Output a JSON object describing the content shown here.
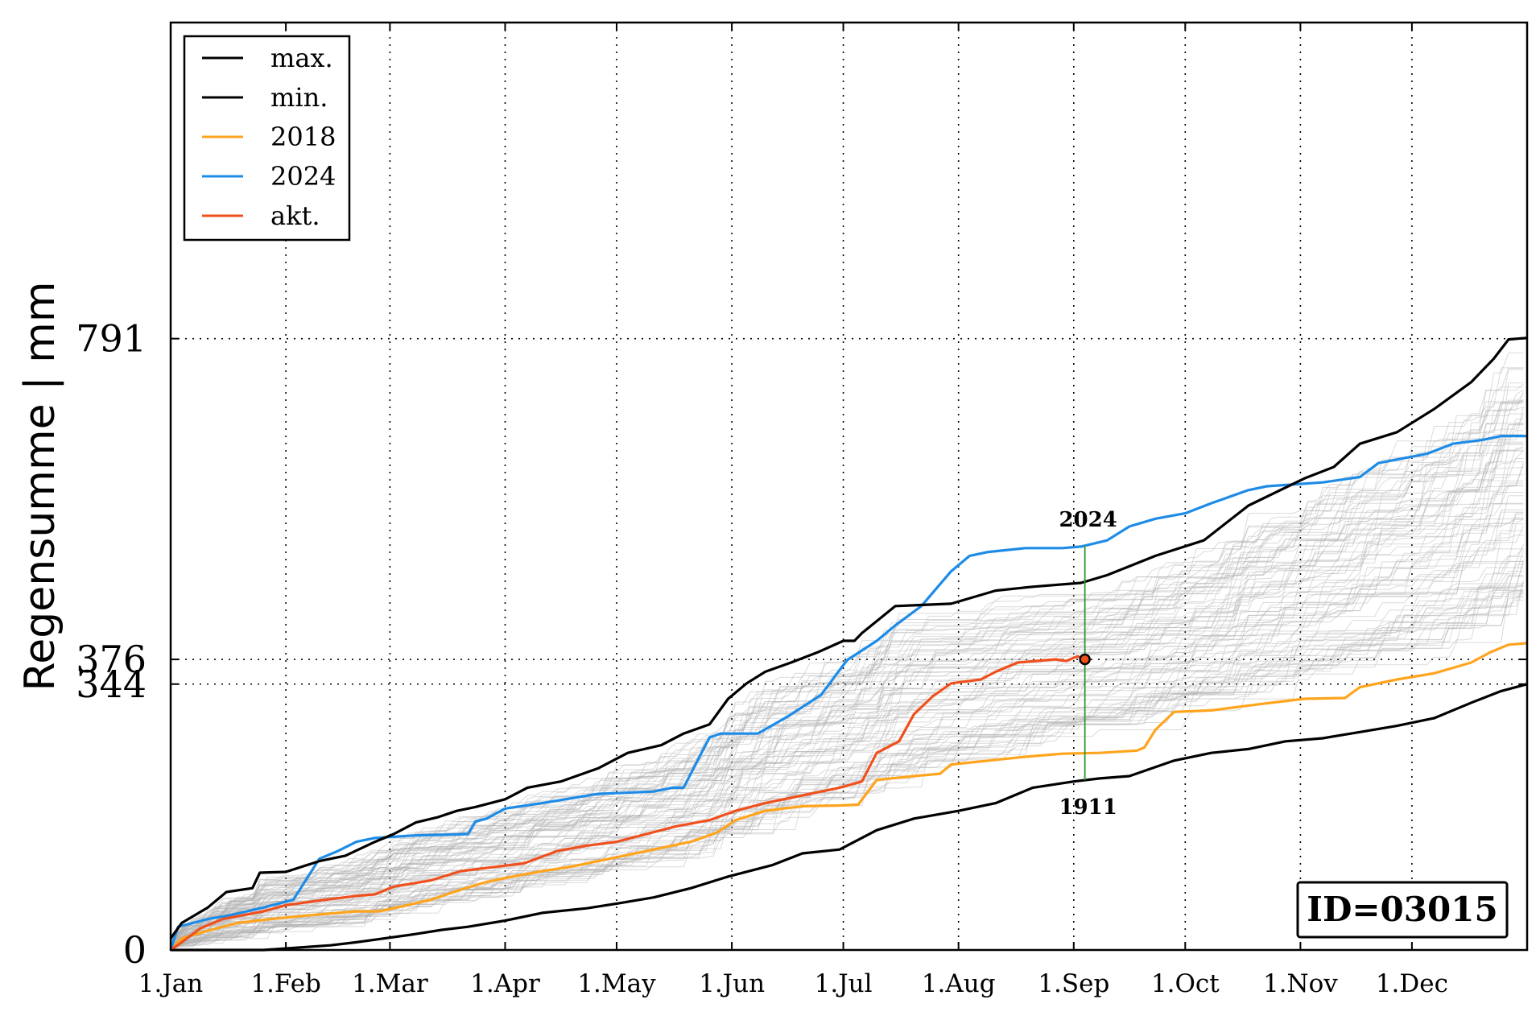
{
  "chart_data": {
    "type": "line",
    "title": "",
    "xlabel": "",
    "ylabel": "Regensumme | mm",
    "x_ticks": [
      "1.Jan",
      "1.Feb",
      "1.Mar",
      "1.Apr",
      "1.May",
      "1.Jun",
      "1.Jul",
      "1.Aug",
      "1.Sep",
      "1.Oct",
      "1.Nov",
      "1.Dec"
    ],
    "x_tick_days": [
      0,
      31,
      59,
      90,
      120,
      151,
      181,
      212,
      243,
      273,
      304,
      334
    ],
    "xlim_days": [
      0,
      365
    ],
    "y_ticks": [
      0,
      344,
      376,
      791
    ],
    "ylim": [
      0,
      1200
    ],
    "grid": true,
    "legend_position": "top-left",
    "id_label": "ID=03015",
    "current_day": 246,
    "current_value": 376,
    "annotation_max_year": "2024",
    "annotation_min_year": "1911",
    "colors": {
      "max": "#000000",
      "min": "#000000",
      "2018": "#ffa41c",
      "2024": "#1e8ce6",
      "akt": "#f0501e",
      "background": "#b0b0b0",
      "marker_line": "#2a9a2a"
    },
    "series": [
      {
        "name": "max.",
        "key": "max",
        "points": [
          [
            0,
            15
          ],
          [
            3,
            35
          ],
          [
            10,
            55
          ],
          [
            15,
            75
          ],
          [
            22,
            80
          ],
          [
            24,
            100
          ],
          [
            31,
            101
          ],
          [
            40,
            115
          ],
          [
            47,
            122
          ],
          [
            55,
            140
          ],
          [
            60,
            150
          ],
          [
            66,
            165
          ],
          [
            72,
            172
          ],
          [
            77,
            180
          ],
          [
            82,
            185
          ],
          [
            90,
            195
          ],
          [
            96,
            210
          ],
          [
            105,
            218
          ],
          [
            115,
            235
          ],
          [
            123,
            255
          ],
          [
            132,
            265
          ],
          [
            138,
            280
          ],
          [
            145,
            292
          ],
          [
            150,
            325
          ],
          [
            155,
            345
          ],
          [
            160,
            360
          ],
          [
            167,
            372
          ],
          [
            174,
            385
          ],
          [
            181,
            400
          ],
          [
            184,
            400
          ],
          [
            186,
            410
          ],
          [
            195,
            445
          ],
          [
            210,
            448
          ],
          [
            222,
            465
          ],
          [
            232,
            470
          ],
          [
            245,
            475
          ],
          [
            252,
            485
          ],
          [
            265,
            510
          ],
          [
            278,
            530
          ],
          [
            290,
            575
          ],
          [
            305,
            610
          ],
          [
            313,
            625
          ],
          [
            320,
            655
          ],
          [
            330,
            670
          ],
          [
            340,
            700
          ],
          [
            350,
            735
          ],
          [
            356,
            765
          ],
          [
            360,
            790
          ],
          [
            365,
            792
          ]
        ]
      },
      {
        "name": "min.",
        "key": "min",
        "points": [
          [
            0,
            0
          ],
          [
            25,
            0
          ],
          [
            31,
            2
          ],
          [
            43,
            6
          ],
          [
            50,
            10
          ],
          [
            56,
            14
          ],
          [
            65,
            20
          ],
          [
            73,
            26
          ],
          [
            80,
            30
          ],
          [
            90,
            38
          ],
          [
            100,
            48
          ],
          [
            112,
            54
          ],
          [
            120,
            60
          ],
          [
            130,
            68
          ],
          [
            140,
            80
          ],
          [
            150,
            95
          ],
          [
            162,
            110
          ],
          [
            170,
            125
          ],
          [
            180,
            130
          ],
          [
            190,
            155
          ],
          [
            200,
            170
          ],
          [
            212,
            180
          ],
          [
            222,
            190
          ],
          [
            232,
            210
          ],
          [
            243,
            218
          ],
          [
            250,
            222
          ],
          [
            258,
            225
          ],
          [
            270,
            245
          ],
          [
            280,
            255
          ],
          [
            290,
            260
          ],
          [
            300,
            270
          ],
          [
            310,
            274
          ],
          [
            320,
            282
          ],
          [
            330,
            290
          ],
          [
            340,
            300
          ],
          [
            350,
            320
          ],
          [
            358,
            335
          ],
          [
            365,
            344
          ]
        ]
      },
      {
        "name": "2018",
        "key": "y2018",
        "points": [
          [
            0,
            0
          ],
          [
            3,
            15
          ],
          [
            10,
            25
          ],
          [
            18,
            35
          ],
          [
            27,
            40
          ],
          [
            31,
            42
          ],
          [
            40,
            46
          ],
          [
            50,
            50
          ],
          [
            56,
            50
          ],
          [
            61,
            55
          ],
          [
            70,
            65
          ],
          [
            78,
            78
          ],
          [
            85,
            88
          ],
          [
            92,
            95
          ],
          [
            100,
            102
          ],
          [
            108,
            108
          ],
          [
            115,
            115
          ],
          [
            120,
            120
          ],
          [
            130,
            130
          ],
          [
            140,
            140
          ],
          [
            147,
            152
          ],
          [
            152,
            168
          ],
          [
            160,
            180
          ],
          [
            170,
            186
          ],
          [
            180,
            187
          ],
          [
            185,
            188
          ],
          [
            190,
            220
          ],
          [
            200,
            225
          ],
          [
            207,
            228
          ],
          [
            210,
            240
          ],
          [
            220,
            245
          ],
          [
            230,
            250
          ],
          [
            240,
            254
          ],
          [
            250,
            255
          ],
          [
            260,
            258
          ],
          [
            262,
            262
          ],
          [
            265,
            285
          ],
          [
            270,
            308
          ],
          [
            280,
            310
          ],
          [
            293,
            318
          ],
          [
            305,
            325
          ],
          [
            316,
            326
          ],
          [
            320,
            340
          ],
          [
            330,
            350
          ],
          [
            340,
            358
          ],
          [
            345,
            365
          ],
          [
            350,
            372
          ],
          [
            355,
            385
          ],
          [
            360,
            395
          ],
          [
            365,
            397
          ]
        ]
      },
      {
        "name": "2024",
        "key": "y2024",
        "points": [
          [
            0,
            0
          ],
          [
            2,
            30
          ],
          [
            10,
            40
          ],
          [
            16,
            45
          ],
          [
            25,
            55
          ],
          [
            29,
            60
          ],
          [
            33,
            65
          ],
          [
            37,
            95
          ],
          [
            40,
            118
          ],
          [
            45,
            128
          ],
          [
            50,
            140
          ],
          [
            55,
            145
          ],
          [
            65,
            148
          ],
          [
            80,
            150
          ],
          [
            82,
            166
          ],
          [
            85,
            170
          ],
          [
            90,
            183
          ],
          [
            100,
            190
          ],
          [
            115,
            202
          ],
          [
            130,
            205
          ],
          [
            135,
            210
          ],
          [
            138,
            210
          ],
          [
            145,
            275
          ],
          [
            148,
            280
          ],
          [
            158,
            280
          ],
          [
            166,
            302
          ],
          [
            175,
            330
          ],
          [
            182,
            375
          ],
          [
            190,
            400
          ],
          [
            195,
            420
          ],
          [
            202,
            445
          ],
          [
            210,
            490
          ],
          [
            215,
            510
          ],
          [
            220,
            515
          ],
          [
            230,
            520
          ],
          [
            240,
            520
          ],
          [
            245,
            522
          ],
          [
            252,
            530
          ],
          [
            258,
            548
          ],
          [
            265,
            558
          ],
          [
            273,
            565
          ],
          [
            280,
            578
          ],
          [
            290,
            595
          ],
          [
            295,
            600
          ],
          [
            310,
            605
          ],
          [
            320,
            612
          ],
          [
            325,
            630
          ],
          [
            338,
            642
          ],
          [
            345,
            655
          ],
          [
            353,
            660
          ],
          [
            358,
            665
          ],
          [
            365,
            665
          ]
        ]
      },
      {
        "name": "akt.",
        "key": "akt",
        "points": [
          [
            0,
            0
          ],
          [
            3,
            10
          ],
          [
            8,
            28
          ],
          [
            14,
            40
          ],
          [
            25,
            50
          ],
          [
            31,
            58
          ],
          [
            40,
            64
          ],
          [
            50,
            70
          ],
          [
            55,
            72
          ],
          [
            60,
            82
          ],
          [
            70,
            90
          ],
          [
            78,
            102
          ],
          [
            88,
            108
          ],
          [
            95,
            112
          ],
          [
            104,
            128
          ],
          [
            112,
            135
          ],
          [
            120,
            140
          ],
          [
            128,
            150
          ],
          [
            136,
            160
          ],
          [
            145,
            168
          ],
          [
            152,
            180
          ],
          [
            160,
            190
          ],
          [
            170,
            200
          ],
          [
            180,
            210
          ],
          [
            186,
            218
          ],
          [
            190,
            255
          ],
          [
            196,
            270
          ],
          [
            200,
            305
          ],
          [
            205,
            328
          ],
          [
            210,
            345
          ],
          [
            218,
            350
          ],
          [
            222,
            360
          ],
          [
            228,
            372
          ],
          [
            233,
            374
          ],
          [
            238,
            376
          ],
          [
            241,
            374
          ],
          [
            244,
            380
          ],
          [
            246,
            376
          ]
        ]
      }
    ]
  }
}
